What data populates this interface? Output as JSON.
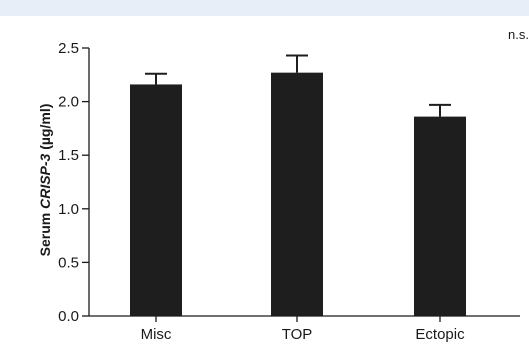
{
  "chart_data": {
    "type": "bar",
    "categories": [
      "Misc",
      "TOP",
      "Ectopic"
    ],
    "values": [
      2.16,
      2.27,
      1.86
    ],
    "error_bars": [
      0.1,
      0.16,
      0.11
    ],
    "ylabel_prefix": "Serum ",
    "ylabel_gene": "CRISP-3",
    "ylabel_unit": " (µg/ml)",
    "ylim": [
      0.0,
      2.5
    ],
    "yticks": [
      0.0,
      0.5,
      1.0,
      1.5,
      2.0,
      2.5
    ],
    "ytick_labels": [
      "0.0",
      "0.5",
      "1.0",
      "1.5",
      "2.0",
      "2.5"
    ],
    "annotation": "n.s.",
    "grid": false,
    "bar_color": "#1e1e1e"
  }
}
